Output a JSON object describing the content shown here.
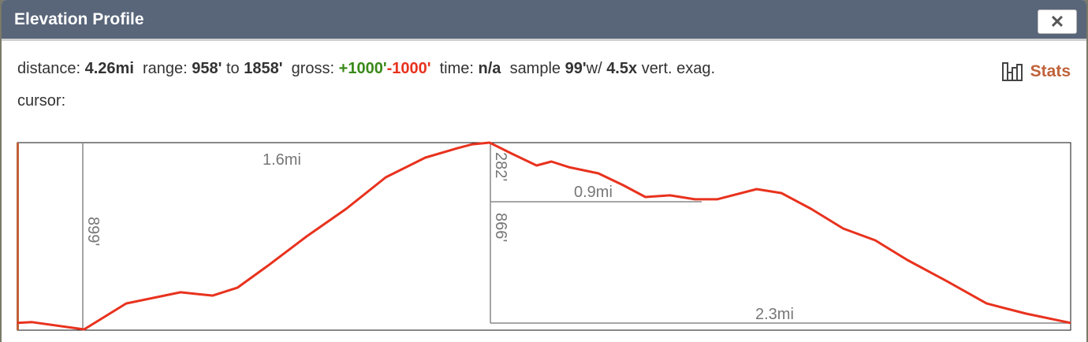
{
  "window": {
    "title": "Elevation Profile",
    "close_label": "✕"
  },
  "info": {
    "distance_label": "distance:",
    "distance": "4.26mi",
    "range_label": "range:",
    "range_min": "958'",
    "range_to": "to",
    "range_max": "1858'",
    "gross_label": "gross:",
    "gain": "+1000'",
    "loss": "-1000'",
    "time_label": "time:",
    "time": "n/a",
    "sample_label": "sample",
    "sample": "99'",
    "with_label": "w/",
    "exag": "4.5x",
    "exag_label": "vert. exag.",
    "cursor_label": "cursor:"
  },
  "stats": {
    "label": "Stats",
    "icon": "bar-chart-icon"
  },
  "colors": {
    "profile": "#e8321e",
    "gain": "#3a8a1a",
    "loss": "#e8321e",
    "accent": "#c0623a",
    "header": "#596579"
  },
  "chart_data": {
    "type": "line",
    "x_unit": "mi",
    "y_unit": "ft",
    "xlim": [
      0,
      4.26
    ],
    "ylim": [
      958,
      1858
    ],
    "x": [
      0,
      0.06,
      0.27,
      0.44,
      0.55,
      0.66,
      0.79,
      0.89,
      1.01,
      1.17,
      1.33,
      1.49,
      1.65,
      1.78,
      1.84,
      1.91,
      2.0,
      2.1,
      2.16,
      2.23,
      2.35,
      2.45,
      2.54,
      2.64,
      2.74,
      2.83,
      2.99,
      3.09,
      3.21,
      3.34,
      3.47,
      3.6,
      3.76,
      3.92,
      4.08,
      4.26
    ],
    "y": [
      989,
      993,
      958,
      1083,
      1110,
      1137,
      1121,
      1159,
      1262,
      1406,
      1539,
      1691,
      1786,
      1831,
      1850,
      1858,
      1805,
      1748,
      1767,
      1740,
      1710,
      1653,
      1596,
      1604,
      1585,
      1585,
      1634,
      1615,
      1539,
      1444,
      1387,
      1292,
      1190,
      1083,
      1034,
      989
    ],
    "annotations": {
      "climb_distance": "1.6mi",
      "climb_height": "899'",
      "dip_height": "282'",
      "dip_distance": "0.9mi",
      "descent_height": "866'",
      "descent_distance": "2.3mi"
    }
  }
}
